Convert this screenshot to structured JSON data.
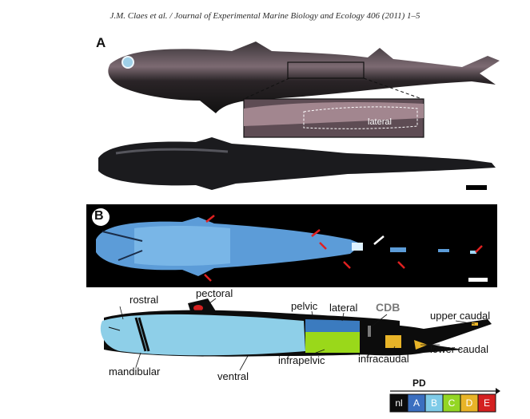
{
  "header": {
    "citation": "J.M. Claes et al. / Journal of Experimental Marine Biology and Ecology 406 (2011) 1–5"
  },
  "panels": {
    "a_letter": "A",
    "b_letter": "B"
  },
  "inset": {
    "label": "lateral"
  },
  "diagram": {
    "labels": {
      "rostral": "rostral",
      "pectoral": "pectoral",
      "pelvic": "pelvic",
      "lateral": "lateral",
      "cdb": "CDB",
      "upper_caudal": "upper caudal",
      "mandibular": "mandibular",
      "ventral": "ventral",
      "infrapelvic": "infrapelvic",
      "infracaudal": "infracaudal",
      "lower_caudal": "lower caudal"
    },
    "colors": {
      "ventral": "#8ecfe8",
      "lateral": "#3b7bbf",
      "pelvic": "#9ad81a",
      "infracaudal": "#e8b428",
      "pectoral": "#d42020",
      "dorsal": "#0c0c0c"
    }
  },
  "legend": {
    "title": "PD",
    "items": [
      {
        "label": "nl",
        "color": "#0c0c0c"
      },
      {
        "label": "A",
        "color": "#3b6fc0"
      },
      {
        "label": "B",
        "color": "#7fcbe8"
      },
      {
        "label": "C",
        "color": "#94d624"
      },
      {
        "label": "D",
        "color": "#e8b428"
      },
      {
        "label": "E",
        "color": "#d42020"
      }
    ]
  }
}
